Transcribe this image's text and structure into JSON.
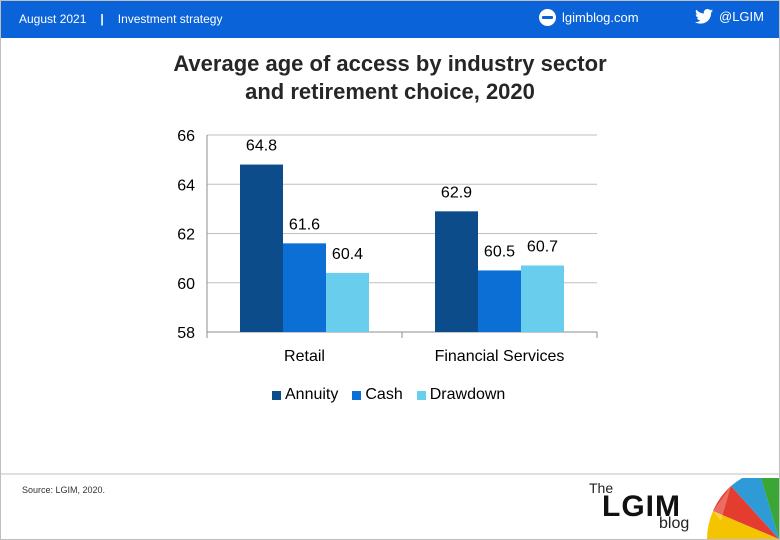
{
  "header": {
    "date": "August 2021",
    "separator": "|",
    "category": "Investment strategy",
    "site": "lgimblog.com",
    "twitter": "@LGIM"
  },
  "title_line1": "Average age of access by industry sector",
  "title_line2": "and retirement choice, 2020",
  "footer": {
    "source": "Source: LGIM, 2020.",
    "logo_the": "The",
    "logo_lgim": "LGIM",
    "logo_blog": "blog"
  },
  "colors": {
    "topbar": "#0a63d8",
    "annuity": "#0d4c8b",
    "cash": "#0b6fd6",
    "drawdown": "#69cdee"
  },
  "chart_data": {
    "type": "bar",
    "title": "Average age of access by industry sector and retirement choice, 2020",
    "categories": [
      "Retail",
      "Financial Services"
    ],
    "series": [
      {
        "name": "Annuity",
        "values": [
          64.8,
          62.9
        ]
      },
      {
        "name": "Cash",
        "values": [
          61.6,
          60.5
        ]
      },
      {
        "name": "Drawdown",
        "values": [
          60.4,
          60.7
        ]
      }
    ],
    "ylim": [
      58,
      66
    ],
    "yticks": [
      58,
      60,
      62,
      64,
      66
    ],
    "grid": true,
    "data_labels": true,
    "legend": "bottom"
  }
}
